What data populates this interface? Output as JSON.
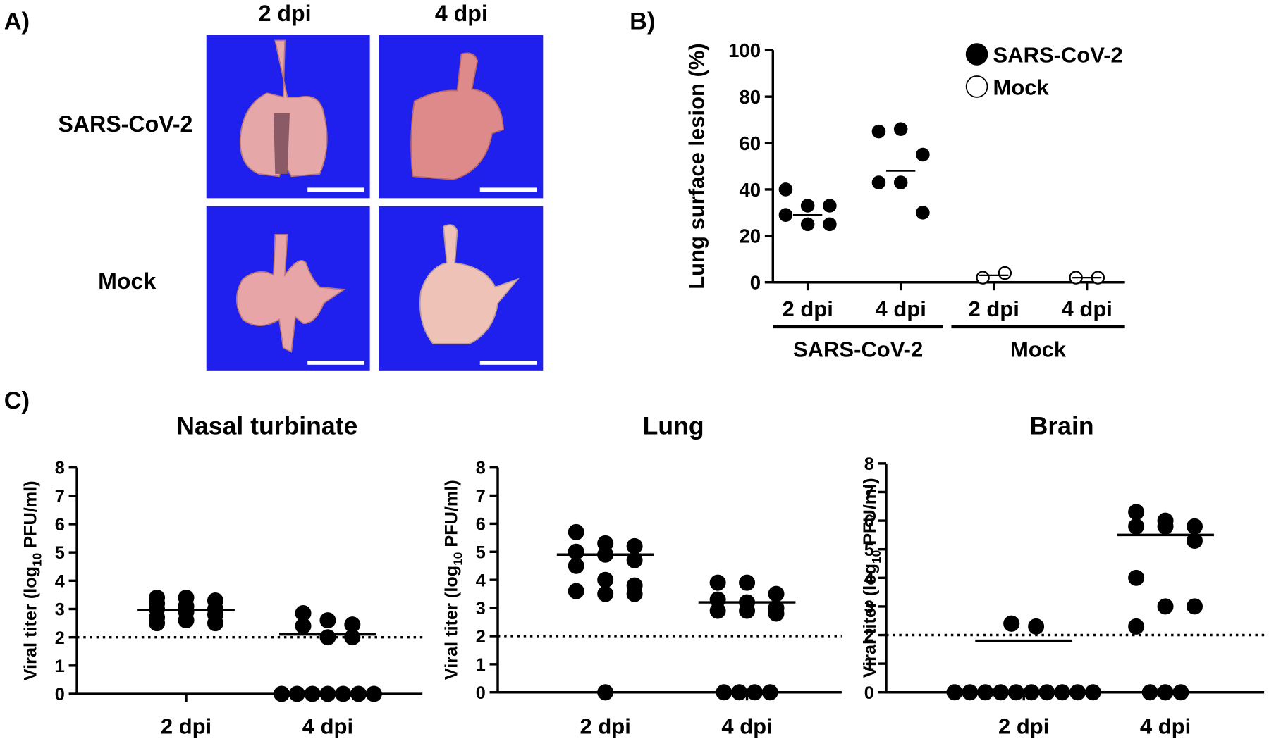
{
  "panel_a": {
    "panel_label": "A)",
    "columns": [
      "2 dpi",
      "4 dpi"
    ],
    "rows": [
      "SARS-CoV-2",
      "Mock"
    ]
  },
  "chart_data": [
    {
      "type": "dot",
      "panel_label": "B)",
      "ylabel": "Lung surface lesion (%)",
      "groups": [
        {
          "label": "SARS-CoV-2",
          "categories": [
            "2 dpi",
            "4 dpi"
          ]
        },
        {
          "label": "Mock",
          "categories": [
            "2 dpi",
            "4 dpi"
          ]
        }
      ],
      "series": [
        {
          "name": "SARS-CoV-2",
          "color": "#000000",
          "marker_fill": "#000000",
          "values": [
            [
              40,
              33,
              33,
              29,
              25,
              25
            ],
            [
              65,
              66,
              55,
              43,
              43,
              30
            ]
          ],
          "center_lines": [
            29,
            48
          ]
        },
        {
          "name": "Mock",
          "color": "#000000",
          "marker_fill": "#ffffff",
          "values": [
            [
              2,
              4
            ],
            [
              2,
              2
            ]
          ],
          "center_lines": [
            3,
            2
          ]
        }
      ],
      "ylim": [
        0,
        100
      ],
      "yticks": [
        0,
        20,
        40,
        60,
        80,
        100
      ],
      "legend": "upper right"
    },
    {
      "type": "dot",
      "panel_label": "C)",
      "title": "Nasal turbinate",
      "ylabel": {
        "text": "Viral titer (log",
        "sub": "10",
        "after": " PFU/ml)"
      },
      "categories": [
        "2 dpi",
        "4 dpi"
      ],
      "color": "#000000",
      "values": [
        [
          3.4,
          3.4,
          3.3,
          3.2,
          3.1,
          3.0,
          3.0,
          2.9,
          2.8,
          2.7,
          2.6,
          2.5,
          2.5
        ],
        [
          2.85,
          2.6,
          2.45,
          2.4,
          2.0,
          2.0,
          0,
          0,
          0,
          0,
          0,
          0,
          0
        ]
      ],
      "center_lines": [
        2.97,
        2.1
      ],
      "detection_limit": 2,
      "ylim": [
        0,
        8
      ],
      "yticks": [
        0,
        1,
        2,
        3,
        4,
        5,
        6,
        7,
        8
      ]
    },
    {
      "type": "dot",
      "title": "Lung",
      "ylabel": {
        "text": "Viral titer (log",
        "sub": "10",
        "after": " PFU/ml)"
      },
      "categories": [
        "2 dpi",
        "4 dpi"
      ],
      "color": "#000000",
      "values": [
        [
          5.7,
          5.3,
          5.2,
          5.0,
          4.9,
          4.7,
          4.5,
          4.0,
          3.8,
          3.6,
          3.5,
          3.5,
          0
        ],
        [
          3.9,
          3.9,
          3.5,
          3.3,
          3.2,
          3.0,
          2.9,
          2.9,
          2.8,
          0,
          0,
          0,
          0
        ]
      ],
      "center_lines": [
        4.9,
        3.2
      ],
      "detection_limit": 2,
      "ylim": [
        0,
        8
      ],
      "yticks": [
        0,
        1,
        2,
        3,
        4,
        5,
        6,
        7,
        8
      ]
    },
    {
      "type": "dot",
      "title": "Brain",
      "ylabel": {
        "text": "Viral titer (log",
        "sub": "10",
        "after": " PFU/ml)"
      },
      "categories": [
        "2 dpi",
        "4 dpi"
      ],
      "color": "#000000",
      "values": [
        [
          2.4,
          2.3,
          2.4,
          0,
          0,
          0,
          0,
          0,
          0,
          0,
          0,
          0,
          0
        ],
        [
          6.3,
          6.0,
          5.8,
          5.8,
          5.8,
          5.3,
          4.0,
          3.0,
          3.0,
          2.3,
          0,
          0,
          0
        ]
      ],
      "center_lines": [
        1.8,
        5.5
      ],
      "detection_limit": 2,
      "ylim": [
        0,
        8
      ],
      "yticks": [
        0,
        1,
        2,
        3,
        4,
        5,
        6,
        7,
        8
      ]
    }
  ]
}
